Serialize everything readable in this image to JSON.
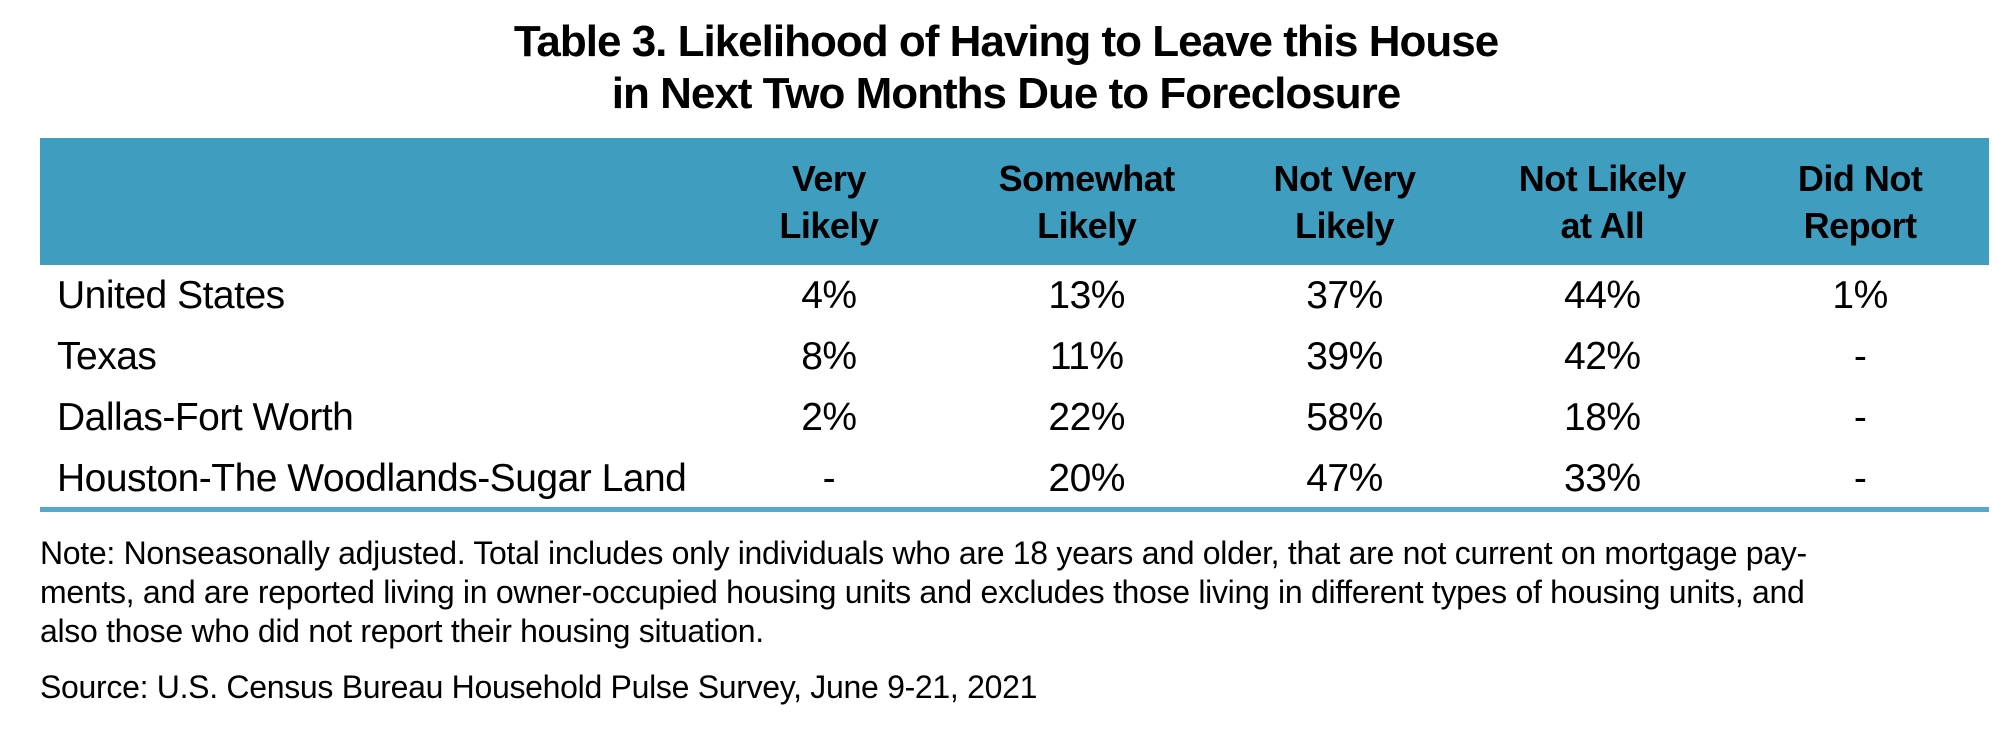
{
  "title": {
    "line1": "Table 3. Likelihood of Having to Leave this House",
    "line2": "in Next Two Months Due to Foreclosure"
  },
  "table": {
    "columns": [
      "Very\nLikely",
      "Somewhat\nLikely",
      "Not Very\nLikely",
      "Not Likely\nat All",
      "Did Not\nReport"
    ],
    "rows": [
      {
        "label": "United States",
        "values": [
          "4%",
          "13%",
          "37%",
          "44%",
          "1%"
        ]
      },
      {
        "label": "Texas",
        "values": [
          "8%",
          "11%",
          "39%",
          "42%",
          "-"
        ]
      },
      {
        "label": "Dallas-Fort Worth",
        "values": [
          "2%",
          "22%",
          "58%",
          "18%",
          "-"
        ]
      },
      {
        "label": "Houston-The Woodlands-Sugar Land",
        "values": [
          "-",
          "20%",
          "47%",
          "33%",
          "-"
        ]
      }
    ]
  },
  "note": {
    "lines": [
      "Note: Nonseasonally adjusted. Total includes only individuals who are 18 years and older, that are not current on mortgage pay-",
      "ments, and are reported living in owner-occupied housing units and excludes those living in different types of housing units, and",
      "also those who did not report their housing situation."
    ]
  },
  "source": "Source: U.S. Census Bureau Household Pulse Survey, June 9-21, 2021",
  "colors": {
    "header_bg": "#3F9EC0",
    "bottom_rule": "#54AACA",
    "text": "#000000",
    "background": "#FFFFFF"
  },
  "chart_data": {
    "type": "table",
    "title": "Table 3. Likelihood of Having to Leave this House in Next Two Months Due to Foreclosure",
    "columns": [
      "Very Likely",
      "Somewhat Likely",
      "Not Very Likely",
      "Not Likely at All",
      "Did Not Report"
    ],
    "row_labels": [
      "United States",
      "Texas",
      "Dallas-Fort Worth",
      "Houston-The Woodlands-Sugar Land"
    ],
    "values": [
      [
        "4%",
        "13%",
        "37%",
        "44%",
        "1%"
      ],
      [
        "8%",
        "11%",
        "39%",
        "42%",
        "-"
      ],
      [
        "2%",
        "22%",
        "58%",
        "18%",
        "-"
      ],
      [
        "-",
        "20%",
        "47%",
        "33%",
        "-"
      ]
    ],
    "note": "Note: Nonseasonally adjusted. Total includes only individuals who are 18 years and older, that are not current on mortgage payments, and are reported living in owner-occupied housing units and excludes those living in different types of housing units, and also those who did not report their housing situation.",
    "source": "Source: U.S. Census Bureau Household Pulse Survey, June 9-21, 2021",
    "layout_hints": {
      "header_background": "#3F9EC0",
      "grid": "off",
      "bottom_rule": true
    }
  }
}
